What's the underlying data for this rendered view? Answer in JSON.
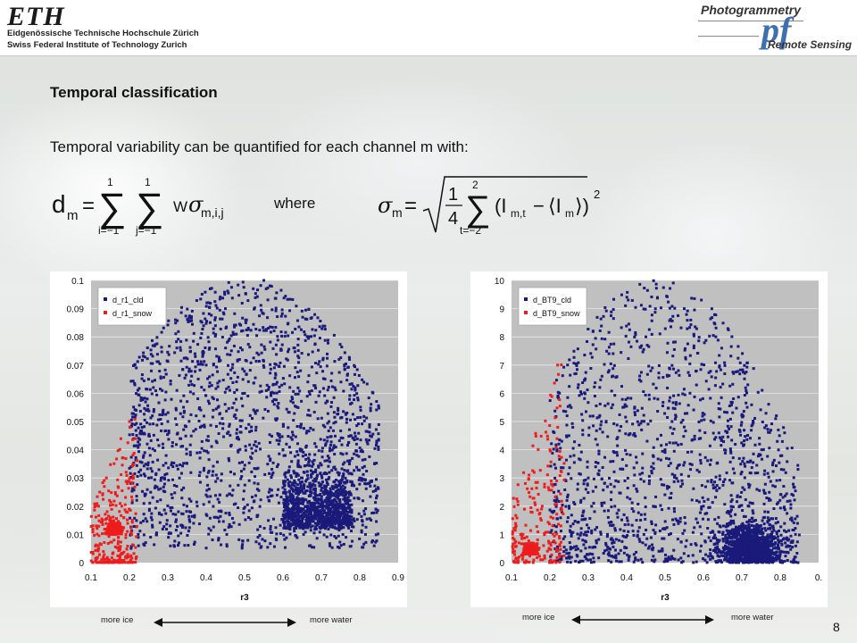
{
  "header": {
    "eth_logo_text": "ETH",
    "eth_line1": "Eidgenössische Technische Hochschule Zürich",
    "eth_line2": "Swiss Federal Institute of Technology Zurich",
    "pf_top": "Photogrammetry",
    "pf_logo": "pf",
    "pf_bottom": "Remote Sensing"
  },
  "slide": {
    "title": "Temporal classification",
    "subtitle": "Temporal variability can be quantified for each channel m with:",
    "where": "where",
    "page_number": "8"
  },
  "formula1": {
    "lhs": "d",
    "lhs_sub": "m",
    "equals": "=",
    "sum1_top": "1",
    "sum1_bottom": "i=−1",
    "sum2_top": "1",
    "sum2_bottom": "j=−1",
    "w": "W",
    "sigma": "σ",
    "sigma_sub": "m,i,j"
  },
  "formula2": {
    "sigma": "σ",
    "sigma_sub": "m",
    "equals": "=",
    "frac_num": "1",
    "frac_den": "4",
    "sum_top": "2",
    "sum_bottom": "t=−2",
    "term": "(I",
    "term_sub": "m,t",
    "minus": "−",
    "mean": "⟨I",
    "mean_sub": "m",
    "mean_close": "⟩)",
    "power": "2"
  },
  "arrows": {
    "left1": "more ice",
    "right1": "more water",
    "left2": "more ice",
    "right2": "more water"
  },
  "chart_data": [
    {
      "type": "scatter",
      "title": "",
      "xlabel": "r3",
      "ylabel": "",
      "xlim": [
        0.1,
        0.9
      ],
      "ylim": [
        0,
        0.1
      ],
      "x_ticks": [
        "0.1",
        "0.2",
        "0.3",
        "0.4",
        "0.5",
        "0.6",
        "0.7",
        "0.8",
        "0.9"
      ],
      "y_ticks": [
        "0",
        "0.01",
        "0.02",
        "0.03",
        "0.04",
        "0.05",
        "0.06",
        "0.07",
        "0.08",
        "0.09",
        "0.1"
      ],
      "grid": true,
      "legend_position": "top-left",
      "plot_background": "#c0c0c0",
      "series": [
        {
          "name": "d_r1_cld",
          "color": "#1a1a7a",
          "marker": "square",
          "distribution": {
            "count": 2600,
            "x_range": [
              0.2,
              0.85
            ],
            "y_peak_range": [
              0.01,
              0.1
            ],
            "dense_band_x": [
              0.6,
              0.78
            ]
          },
          "sample_points": [
            [
              0.25,
              0.03
            ],
            [
              0.3,
              0.05
            ],
            [
              0.4,
              0.07
            ],
            [
              0.45,
              0.09
            ],
            [
              0.5,
              0.06
            ],
            [
              0.6,
              0.04
            ],
            [
              0.65,
              0.03
            ],
            [
              0.7,
              0.02
            ],
            [
              0.72,
              0.05
            ],
            [
              0.8,
              0.03
            ],
            [
              0.55,
              0.1
            ],
            [
              0.35,
              0.02
            ]
          ]
        },
        {
          "name": "d_r1_snow",
          "color": "#ee1c1c",
          "marker": "square",
          "distribution": {
            "count": 600,
            "x_range": [
              0.1,
              0.22
            ],
            "y_peak_range": [
              0.002,
              0.06
            ],
            "dense_center": [
              0.16,
              0.01
            ]
          },
          "sample_points": [
            [
              0.12,
              0.005
            ],
            [
              0.15,
              0.01
            ],
            [
              0.16,
              0.008
            ],
            [
              0.18,
              0.02
            ],
            [
              0.14,
              0.03
            ],
            [
              0.2,
              0.05
            ],
            [
              0.13,
              0.015
            ]
          ]
        }
      ]
    },
    {
      "type": "scatter",
      "title": "",
      "xlabel": "r3",
      "ylabel": "",
      "xlim": [
        0.1,
        0.9
      ],
      "ylim": [
        0,
        10
      ],
      "x_ticks": [
        "0.1",
        "0.2",
        "0.3",
        "0.4",
        "0.5",
        "0.6",
        "0.7",
        "0.8",
        "0."
      ],
      "y_ticks": [
        "0",
        "1",
        "2",
        "3",
        "4",
        "5",
        "6",
        "7",
        "8",
        "9",
        "10"
      ],
      "grid": true,
      "legend_position": "top-left",
      "plot_background": "#c0c0c0",
      "series": [
        {
          "name": "d_BT9_cld",
          "color": "#1a1a7a",
          "marker": "square",
          "distribution": {
            "count": 2600,
            "x_range": [
              0.2,
              0.85
            ],
            "y_peak_range": [
              0,
              10
            ],
            "dense_center": [
              0.72,
              0.4
            ]
          },
          "sample_points": [
            [
              0.25,
              2
            ],
            [
              0.3,
              3
            ],
            [
              0.4,
              5
            ],
            [
              0.45,
              8
            ],
            [
              0.5,
              4
            ],
            [
              0.6,
              2
            ],
            [
              0.65,
              1
            ],
            [
              0.7,
              0.5
            ],
            [
              0.72,
              1.5
            ],
            [
              0.8,
              0.3
            ],
            [
              0.55,
              9
            ],
            [
              0.35,
              1
            ]
          ]
        },
        {
          "name": "d_BT9_snow",
          "color": "#ee1c1c",
          "marker": "square",
          "distribution": {
            "count": 500,
            "x_range": [
              0.1,
              0.24
            ],
            "y_peak_range": [
              0,
              7.5
            ],
            "dense_center": [
              0.15,
              0.3
            ]
          },
          "sample_points": [
            [
              0.12,
              0.2
            ],
            [
              0.14,
              0.4
            ],
            [
              0.16,
              0.3
            ],
            [
              0.18,
              2
            ],
            [
              0.2,
              4
            ],
            [
              0.22,
              7
            ],
            [
              0.13,
              1
            ]
          ]
        }
      ]
    }
  ]
}
